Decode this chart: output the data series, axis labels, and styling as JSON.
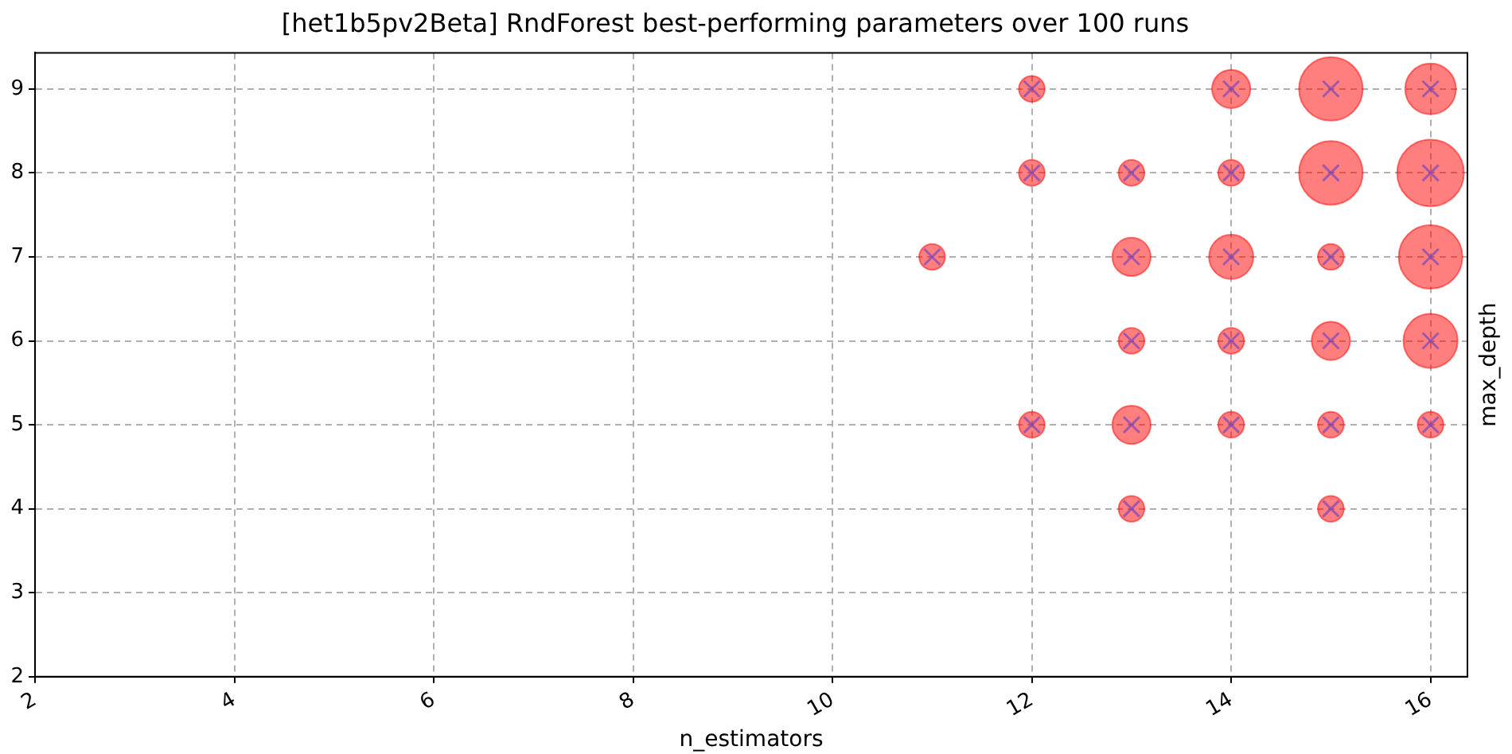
{
  "chart_data": {
    "type": "bubble",
    "title": "[het1b5pv2Beta] RndForest best-performing parameters over 100 runs",
    "xlabel": "n_estimators",
    "ylabel": "max_depth",
    "x": [
      12,
      14,
      15,
      16,
      12,
      13,
      14,
      15,
      16,
      11,
      13,
      14,
      15,
      16,
      13,
      14,
      15,
      16,
      12,
      13,
      14,
      15,
      16,
      13,
      15
    ],
    "values": [
      9,
      9,
      9,
      9,
      8,
      8,
      8,
      8,
      8,
      7,
      7,
      7,
      7,
      7,
      6,
      6,
      6,
      6,
      5,
      5,
      5,
      5,
      5,
      4,
      4
    ],
    "sizes": [
      0.15,
      0.33,
      0.91,
      0.58,
      0.15,
      0.15,
      0.15,
      0.91,
      1,
      0.15,
      0.33,
      0.44,
      0.15,
      0.91,
      0.15,
      0.15,
      0.33,
      0.66,
      0.15,
      0.33,
      0.15,
      0.15,
      0.15,
      0.15,
      0.15
    ],
    "color": "#ff0000",
    "grid": true,
    "xlim": [
      2,
      16.37
    ],
    "xticks": [
      2,
      4,
      6,
      8,
      10,
      12,
      14,
      16
    ],
    "ylim": [
      2,
      9.43
    ],
    "yticks": [
      2,
      3,
      4,
      5,
      6,
      7,
      8,
      9
    ]
  }
}
